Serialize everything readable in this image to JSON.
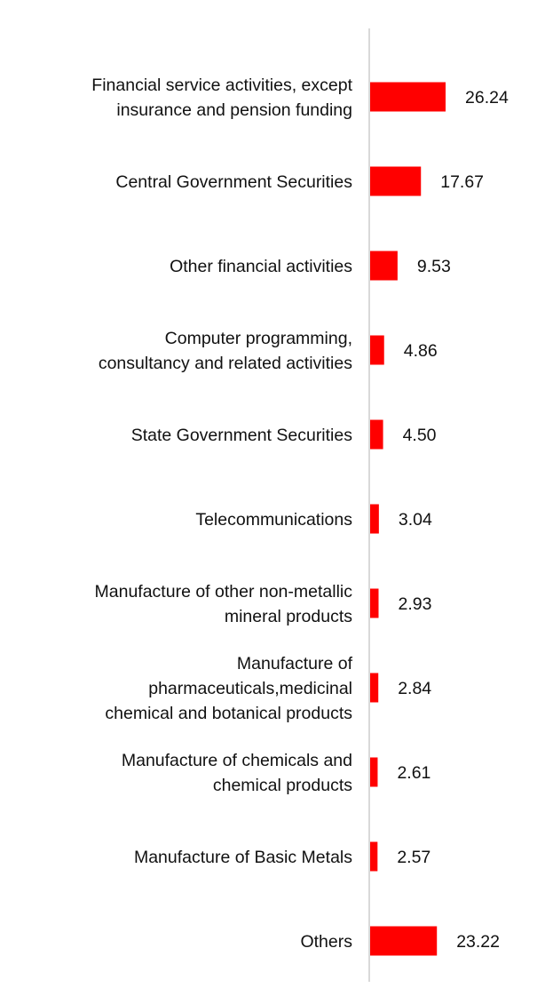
{
  "chart_data": {
    "type": "bar",
    "orientation": "horizontal",
    "title": "",
    "xlabel": "",
    "ylabel": "",
    "grid": false,
    "legend": "none",
    "xlim": [
      0,
      30
    ],
    "bar_color": "#ff0000",
    "axis_color": "#d9d9d9",
    "categories": [
      [
        "Financial service activities, except",
        "insurance and pension funding"
      ],
      [
        "Central Government Securities"
      ],
      [
        "Other financial activities"
      ],
      [
        "Computer programming,",
        "consultancy and related activities"
      ],
      [
        "State Government Securities"
      ],
      [
        "Telecommunications"
      ],
      [
        "Manufacture of other non-metallic",
        "mineral products"
      ],
      [
        "Manufacture of",
        "pharmaceuticals,medicinal",
        "chemical and botanical products"
      ],
      [
        "Manufacture of chemicals and",
        "chemical products"
      ],
      [
        "Manufacture of Basic Metals"
      ],
      [
        "Others"
      ]
    ],
    "values": [
      26.24,
      17.67,
      9.53,
      4.86,
      4.5,
      3.04,
      2.93,
      2.84,
      2.61,
      2.57,
      23.22
    ],
    "value_labels": [
      "26.24",
      "17.67",
      "9.53",
      "4.86",
      "4.50",
      "3.04",
      "2.93",
      "2.84",
      "2.61",
      "2.57",
      "23.22"
    ]
  }
}
